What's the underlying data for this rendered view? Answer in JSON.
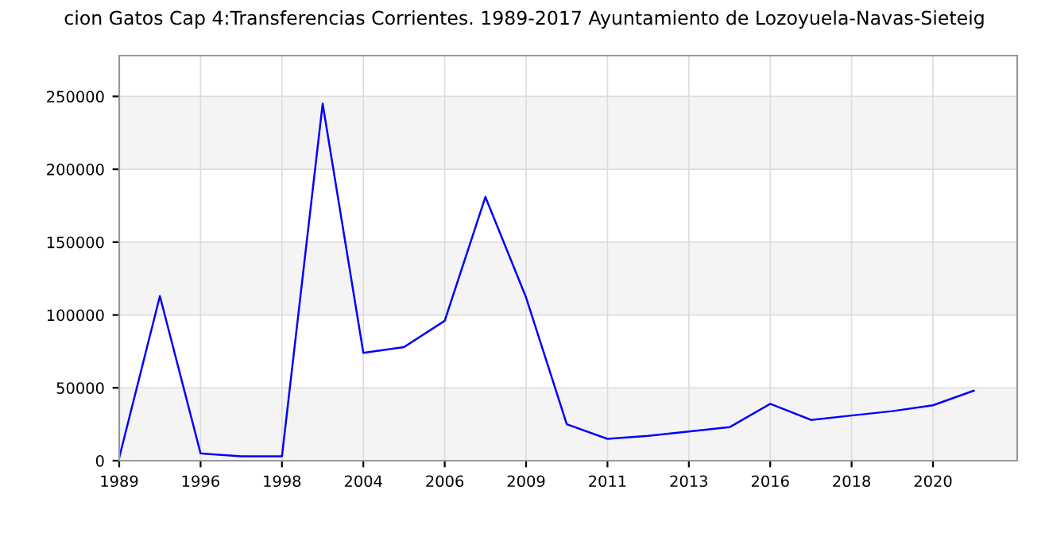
{
  "chart_data": {
    "type": "line",
    "title": "cion Gatos Cap 4:Transferencias Corrientes. 1989-2017 Ayuntamiento de Lozoyuela-Navas-Sieteig",
    "categories": [
      "1989",
      null,
      "1996",
      null,
      "1998",
      null,
      "2004",
      null,
      "2006",
      null,
      "2009",
      null,
      "2011",
      null,
      "2013",
      null,
      "2016",
      null,
      "2018",
      null,
      "2020",
      null
    ],
    "series": [
      {
        "color": "#0000ff",
        "values": [
          2000,
          113000,
          5000,
          3000,
          3000,
          245000,
          74000,
          78000,
          96000,
          181000,
          112000,
          25000,
          15000,
          17000,
          20000,
          23000,
          39000,
          28000,
          31000,
          34000,
          38000,
          48000
        ]
      }
    ],
    "ylim": [
      0,
      278000
    ],
    "yticks": [
      0,
      50000,
      100000,
      150000,
      200000,
      250000
    ],
    "grid": true,
    "marker": "none",
    "line_style": "solid",
    "legend": false
  }
}
